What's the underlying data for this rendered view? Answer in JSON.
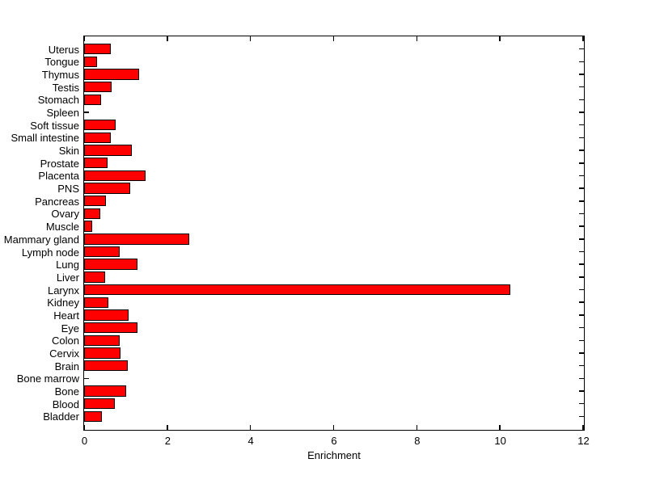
{
  "figure": {
    "background_color": "#ffffff",
    "text_color": "#000000"
  },
  "chart_data": {
    "type": "bar",
    "orientation": "horizontal",
    "title": "",
    "xlabel": "Enrichment",
    "ylabel": "",
    "xlim": [
      0,
      12
    ],
    "xticks": [
      0,
      2,
      4,
      6,
      8,
      10,
      12
    ],
    "grid": false,
    "legend": "none",
    "bar_color": "#ff0000",
    "bar_edge_color": "#000000",
    "axis_color": "#000000",
    "categories": [
      "Uterus",
      "Tongue",
      "Thymus",
      "Testis",
      "Stomach",
      "Spleen",
      "Soft tissue",
      "Small intestine",
      "Skin",
      "Prostate",
      "Placenta",
      "PNS",
      "Pancreas",
      "Ovary",
      "Muscle",
      "Mammary gland",
      "Lymph node",
      "Lung",
      "Liver",
      "Larynx",
      "Kidney",
      "Heart",
      "Eye",
      "Colon",
      "Cervix",
      "Brain",
      "Bone marrow",
      "Bone",
      "Blood",
      "Bladder"
    ],
    "values": [
      0.65,
      0.32,
      1.32,
      0.66,
      0.41,
      0.02,
      0.76,
      0.65,
      1.15,
      0.56,
      1.47,
      1.1,
      0.52,
      0.38,
      0.19,
      2.53,
      0.86,
      1.28,
      0.5,
      10.25,
      0.59,
      1.07,
      1.29,
      0.86,
      0.88,
      1.05,
      0.02,
      1.01,
      0.74,
      0.42
    ]
  }
}
